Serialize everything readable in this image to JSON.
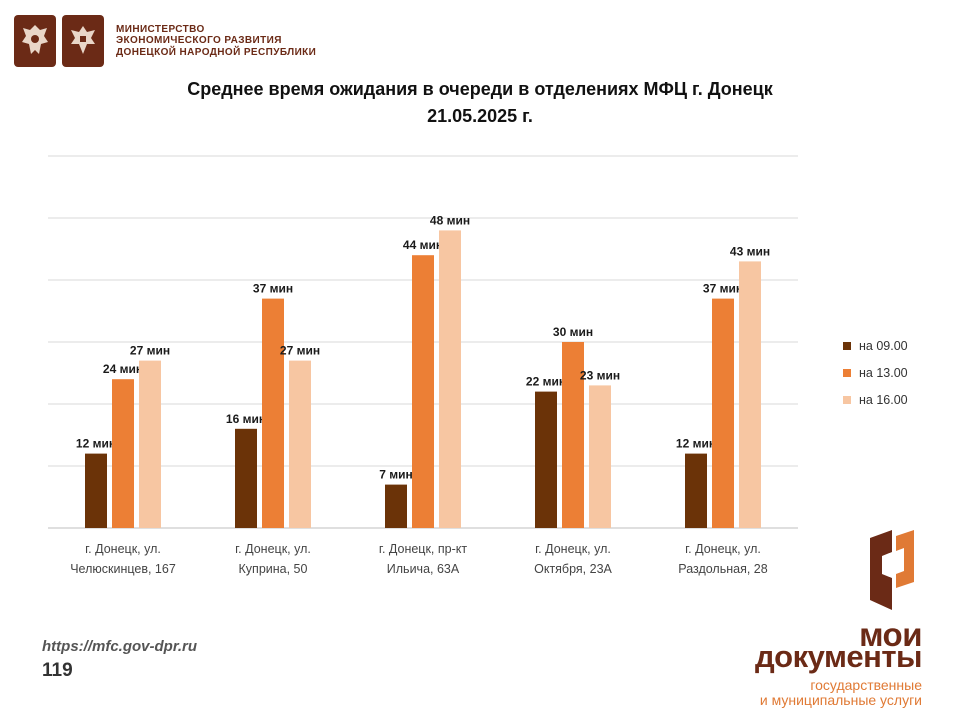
{
  "header": {
    "ministry_lines": [
      "МИНИСТЕРСТВО",
      "ЭКОНОМИЧЕСКОГО РАЗВИТИЯ",
      "ДОНЕЦКОЙ НАРОДНОЙ РЕСПУБЛИКИ"
    ],
    "emblems": [
      "russia-coat-of-arms-icon",
      "dpr-coat-of-arms-icon"
    ]
  },
  "title_lines": [
    "Среднее время ожидания в очереди в отделениях МФЦ г. Донецк",
    "21.05.2025 г."
  ],
  "chart_data": {
    "type": "bar",
    "title": "Среднее время ожидания в очереди в отделениях МФЦ г. Донецк 21.05.2025 г.",
    "categories": [
      [
        "г. Донецк, ул.",
        "Челюскинцев, 167"
      ],
      [
        "г. Донецк, ул.",
        "Куприна, 50"
      ],
      [
        "г. Донецк, пр-кт",
        "Ильича, 63А"
      ],
      [
        "г. Донецк, ул.",
        "Октября, 23А"
      ],
      [
        "г. Донецк, ул.",
        "Раздольная, 28"
      ]
    ],
    "series": [
      {
        "name": "на 09.00",
        "color": "#6b3308",
        "values": [
          12,
          16,
          7,
          22,
          12
        ]
      },
      {
        "name": "на 13.00",
        "color": "#ec7f35",
        "values": [
          24,
          37,
          44,
          30,
          37
        ]
      },
      {
        "name": "на 16.00",
        "color": "#f7c6a2",
        "values": [
          27,
          27,
          48,
          23,
          43
        ]
      }
    ],
    "value_suffix": " мин",
    "ylim": [
      0,
      60
    ],
    "grid": true,
    "legend": "right",
    "xlabel": "",
    "ylabel": ""
  },
  "footer": {
    "url": "https://mfc.gov-dpr.ru",
    "page_number": "119"
  },
  "brand": {
    "line1": "мои",
    "line2": "документы",
    "sub1": "государственные",
    "sub2": "и муниципальные услуги",
    "color_dark": "#6b2a16",
    "color_accent": "#e07a35"
  }
}
